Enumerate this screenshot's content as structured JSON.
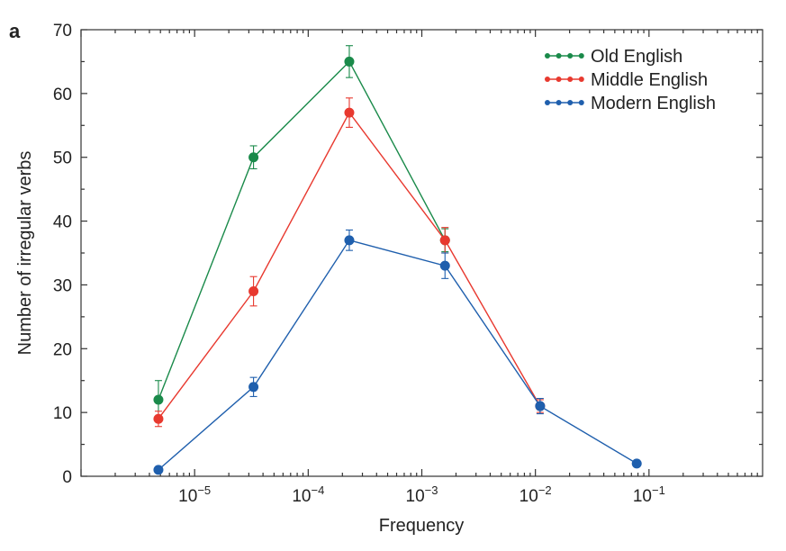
{
  "chart_data": {
    "type": "line",
    "panel_label": "a",
    "xlabel": "Frequency",
    "ylabel": "Number of irregular verbs",
    "x_scale": "log",
    "xlim": [
      1e-06,
      1
    ],
    "ylim": [
      0,
      70
    ],
    "yticks": [
      "0",
      "10",
      "20",
      "30",
      "40",
      "50",
      "60",
      "70"
    ],
    "xticks": [
      {
        "value": 1e-05,
        "base": "10",
        "exp": "−5"
      },
      {
        "value": 0.0001,
        "base": "10",
        "exp": "−4"
      },
      {
        "value": 0.001,
        "base": "10",
        "exp": "−3"
      },
      {
        "value": 0.01,
        "base": "10",
        "exp": "−2"
      },
      {
        "value": 0.1,
        "base": "10",
        "exp": "−1"
      }
    ],
    "grid": false,
    "legend_position": "top-right",
    "series": [
      {
        "name": "Old English",
        "color": "#1a8a4a",
        "x": [
          4.8e-06,
          3.3e-05,
          0.00023,
          0.0016
        ],
        "y": [
          12,
          50,
          65,
          37
        ],
        "err": [
          3.0,
          1.8,
          2.5,
          1.8
        ]
      },
      {
        "name": "Middle English",
        "color": "#e8392f",
        "x": [
          4.8e-06,
          3.3e-05,
          0.00023,
          0.0016,
          0.011
        ],
        "y": [
          9,
          29,
          57,
          37,
          11
        ],
        "err": [
          1.2,
          2.3,
          2.3,
          2.0,
          1.0
        ]
      },
      {
        "name": "Modern English",
        "color": "#1f5fad",
        "x": [
          4.8e-06,
          3.3e-05,
          0.00023,
          0.0016,
          0.011,
          0.078
        ],
        "y": [
          1,
          14,
          37,
          33,
          11,
          2
        ],
        "err": [
          0,
          1.5,
          1.6,
          2.0,
          1.2,
          0
        ]
      }
    ]
  }
}
